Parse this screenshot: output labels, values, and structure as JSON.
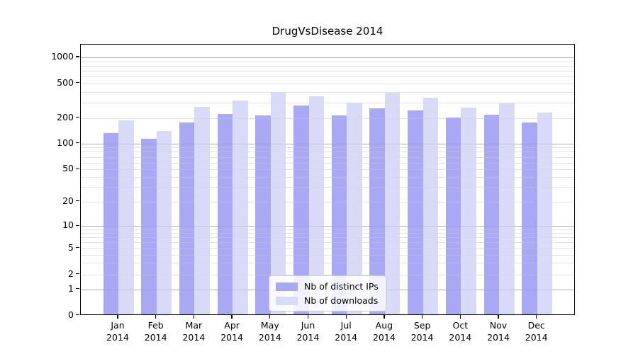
{
  "figure": {
    "background": "#ffffff"
  },
  "chart_data": {
    "type": "bar",
    "title": "DrugVsDisease 2014",
    "xlabel": "",
    "ylabel": "",
    "x_tick_line2": "2014",
    "categories": [
      "Jan",
      "Feb",
      "Mar",
      "Apr",
      "May",
      "Jun",
      "Jul",
      "Aug",
      "Sep",
      "Oct",
      "Nov",
      "Dec"
    ],
    "series": [
      {
        "name": "Nb of distinct IPs",
        "color": "#a8a8f5",
        "values": [
          127,
          109,
          172,
          214,
          205,
          270,
          206,
          247,
          237,
          194,
          210,
          170
        ]
      },
      {
        "name": "Nb of downloads",
        "color": "#d9d9f8",
        "values": [
          182,
          135,
          260,
          308,
          385,
          342,
          284,
          378,
          330,
          252,
          282,
          222
        ]
      }
    ],
    "y_axis": {
      "scale": "symlog",
      "tick_values": [
        0,
        1,
        2,
        5,
        10,
        20,
        50,
        100,
        200,
        500,
        1000
      ],
      "tick_labels": [
        "0",
        "1",
        "2",
        "5",
        "10",
        "20",
        "50",
        "100",
        "200",
        "500",
        "1000"
      ],
      "ylim": [
        0,
        1300
      ]
    },
    "grid": "on",
    "legend": {
      "position": "lower center",
      "entries": [
        "Nb of distinct IPs",
        "Nb of downloads"
      ]
    }
  }
}
